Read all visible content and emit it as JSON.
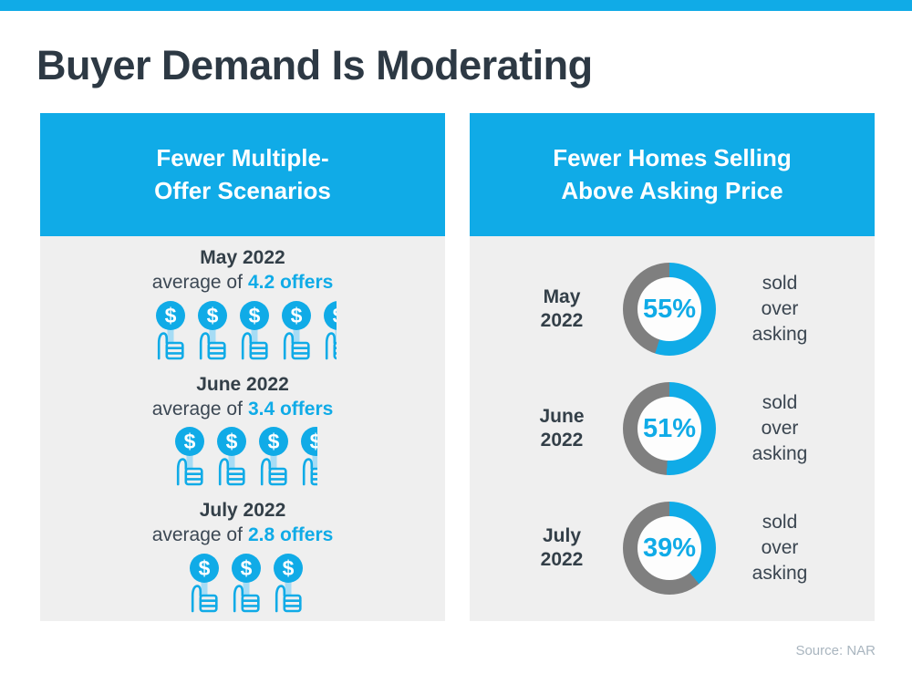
{
  "page": {
    "title": "Buyer Demand Is Moderating",
    "source": "Source: NAR",
    "colors": {
      "accent": "#10ABE7",
      "gray": "#7F7F7F",
      "panel_bg": "#EFEFEF",
      "dark": "#333F48",
      "stem": "#A6DCF5"
    },
    "icons": {
      "dollar_symbol": "$"
    }
  },
  "left_panel": {
    "header_line1": "Fewer Multiple-",
    "header_line2": "Offer Scenarios",
    "rows": [
      {
        "month": "May 2022",
        "prefix": "average of",
        "value": "4.2 offers",
        "icons_full": 4,
        "icon_partial": 0.45
      },
      {
        "month": "June 2022",
        "prefix": "average of",
        "value": "3.4 offers",
        "icons_full": 3,
        "icon_partial": 0.55
      },
      {
        "month": "July 2022",
        "prefix": "average of",
        "value": "2.8 offers",
        "icons_full": 2,
        "icon_partial": 0.85
      }
    ]
  },
  "right_panel": {
    "header_line1": "Fewer Homes Selling",
    "header_line2": "Above Asking Price",
    "rows": [
      {
        "month_line1": "May",
        "month_line2": "2022",
        "percent": 55,
        "percent_label": "55%",
        "caption": [
          "sold",
          "over",
          "asking"
        ]
      },
      {
        "month_line1": "June",
        "month_line2": "2022",
        "percent": 51,
        "percent_label": "51%",
        "caption": [
          "sold",
          "over",
          "asking"
        ]
      },
      {
        "month_line1": "July",
        "month_line2": "2022",
        "percent": 39,
        "percent_label": "39%",
        "caption": [
          "sold",
          "over",
          "asking"
        ]
      }
    ]
  },
  "chart_data": [
    {
      "type": "bar",
      "title": "Fewer Multiple-Offer Scenarios",
      "categories": [
        "May 2022",
        "June 2022",
        "July 2022"
      ],
      "values": [
        4.2,
        3.4,
        2.8
      ],
      "ylabel": "average number of offers",
      "note": "pictogram bar chart; each unit drawn as a cyan dollar-sign thumbs-up icon, fractional offer shown as a clipped icon"
    },
    {
      "type": "pie",
      "title": "Fewer Homes Selling Above Asking Price",
      "categories": [
        "May 2022",
        "June 2022",
        "July 2022"
      ],
      "values": [
        55,
        51,
        39
      ],
      "ylabel": "% of homes sold over asking price",
      "note": "three donut gauges; cyan arc starts at 12 o'clock clockwise = percent sold over asking, remainder gray"
    }
  ]
}
